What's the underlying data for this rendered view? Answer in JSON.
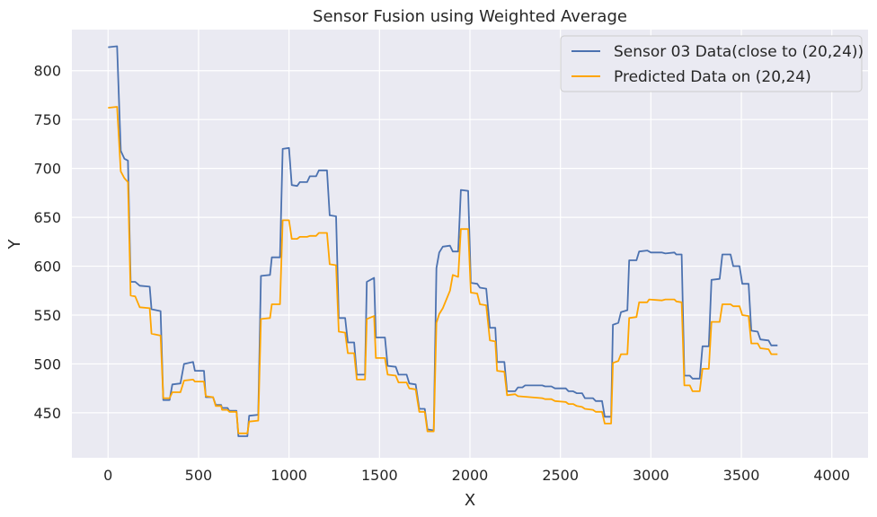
{
  "chart_data": {
    "type": "line",
    "title": "Sensor Fusion using Weighted Average",
    "xlabel": "X",
    "ylabel": "Y",
    "xlim": [
      -200,
      4200
    ],
    "ylim": [
      404,
      842
    ],
    "xticks": [
      0,
      500,
      1000,
      1500,
      2000,
      2500,
      3000,
      3500,
      4000
    ],
    "yticks": [
      450,
      500,
      550,
      600,
      650,
      700,
      750,
      800
    ],
    "grid": true,
    "legend_position": "top-right",
    "series": [
      {
        "name": "Sensor 03 Data(close to (20,24))",
        "color": "#4c72b0",
        "points": [
          [
            0,
            824
          ],
          [
            50,
            825
          ],
          [
            70,
            718
          ],
          [
            90,
            710
          ],
          [
            110,
            708
          ],
          [
            125,
            584
          ],
          [
            150,
            584
          ],
          [
            175,
            580
          ],
          [
            230,
            579
          ],
          [
            240,
            556
          ],
          [
            290,
            554
          ],
          [
            305,
            463
          ],
          [
            340,
            463
          ],
          [
            355,
            479
          ],
          [
            400,
            480
          ],
          [
            420,
            500
          ],
          [
            470,
            502
          ],
          [
            480,
            493
          ],
          [
            530,
            493
          ],
          [
            540,
            466
          ],
          [
            580,
            466
          ],
          [
            595,
            458
          ],
          [
            625,
            458
          ],
          [
            630,
            455
          ],
          [
            660,
            455
          ],
          [
            670,
            452
          ],
          [
            710,
            452
          ],
          [
            720,
            426
          ],
          [
            770,
            426
          ],
          [
            780,
            447
          ],
          [
            830,
            448
          ],
          [
            845,
            590
          ],
          [
            895,
            591
          ],
          [
            905,
            609
          ],
          [
            950,
            609
          ],
          [
            965,
            720
          ],
          [
            1000,
            721
          ],
          [
            1015,
            683
          ],
          [
            1045,
            682
          ],
          [
            1060,
            686
          ],
          [
            1100,
            686
          ],
          [
            1115,
            692
          ],
          [
            1150,
            692
          ],
          [
            1165,
            698
          ],
          [
            1210,
            698
          ],
          [
            1225,
            652
          ],
          [
            1260,
            651
          ],
          [
            1275,
            547
          ],
          [
            1310,
            547
          ],
          [
            1325,
            522
          ],
          [
            1360,
            522
          ],
          [
            1375,
            489
          ],
          [
            1420,
            489
          ],
          [
            1430,
            584
          ],
          [
            1470,
            588
          ],
          [
            1480,
            527
          ],
          [
            1530,
            527
          ],
          [
            1545,
            498
          ],
          [
            1590,
            497
          ],
          [
            1605,
            489
          ],
          [
            1650,
            489
          ],
          [
            1665,
            480
          ],
          [
            1700,
            479
          ],
          [
            1720,
            454
          ],
          [
            1750,
            454
          ],
          [
            1765,
            433
          ],
          [
            1800,
            432
          ],
          [
            1815,
            598
          ],
          [
            1830,
            614
          ],
          [
            1850,
            620
          ],
          [
            1890,
            621
          ],
          [
            1905,
            615
          ],
          [
            1935,
            615
          ],
          [
            1950,
            678
          ],
          [
            1990,
            677
          ],
          [
            2005,
            583
          ],
          [
            2040,
            582
          ],
          [
            2055,
            578
          ],
          [
            2090,
            577
          ],
          [
            2110,
            537
          ],
          [
            2140,
            537
          ],
          [
            2150,
            502
          ],
          [
            2190,
            502
          ],
          [
            2205,
            472
          ],
          [
            2250,
            472
          ],
          [
            2265,
            476
          ],
          [
            2290,
            476
          ],
          [
            2305,
            478
          ],
          [
            2400,
            478
          ],
          [
            2415,
            477
          ],
          [
            2450,
            477
          ],
          [
            2470,
            475
          ],
          [
            2530,
            475
          ],
          [
            2545,
            472
          ],
          [
            2570,
            472
          ],
          [
            2590,
            470
          ],
          [
            2620,
            470
          ],
          [
            2635,
            465
          ],
          [
            2680,
            465
          ],
          [
            2695,
            462
          ],
          [
            2730,
            462
          ],
          [
            2745,
            446
          ],
          [
            2780,
            446
          ],
          [
            2790,
            540
          ],
          [
            2820,
            542
          ],
          [
            2835,
            553
          ],
          [
            2870,
            555
          ],
          [
            2880,
            606
          ],
          [
            2920,
            606
          ],
          [
            2935,
            615
          ],
          [
            2980,
            616
          ],
          [
            3000,
            614
          ],
          [
            3060,
            614
          ],
          [
            3080,
            613
          ],
          [
            3130,
            614
          ],
          [
            3140,
            612
          ],
          [
            3170,
            612
          ],
          [
            3185,
            488
          ],
          [
            3215,
            488
          ],
          [
            3230,
            485
          ],
          [
            3270,
            485
          ],
          [
            3285,
            518
          ],
          [
            3320,
            518
          ],
          [
            3335,
            586
          ],
          [
            3380,
            587
          ],
          [
            3395,
            612
          ],
          [
            3440,
            612
          ],
          [
            3455,
            600
          ],
          [
            3490,
            600
          ],
          [
            3505,
            582
          ],
          [
            3540,
            582
          ],
          [
            3555,
            534
          ],
          [
            3590,
            533
          ],
          [
            3605,
            525
          ],
          [
            3650,
            524
          ],
          [
            3665,
            519
          ],
          [
            3700,
            519
          ]
        ]
      },
      {
        "name": "Predicted Data on (20,24)",
        "color": "#ffa500",
        "points": [
          [
            0,
            762
          ],
          [
            50,
            763
          ],
          [
            70,
            697
          ],
          [
            90,
            690
          ],
          [
            110,
            686
          ],
          [
            125,
            570
          ],
          [
            150,
            569
          ],
          [
            175,
            558
          ],
          [
            230,
            557
          ],
          [
            240,
            531
          ],
          [
            290,
            529
          ],
          [
            305,
            465
          ],
          [
            340,
            465
          ],
          [
            355,
            471
          ],
          [
            400,
            471
          ],
          [
            420,
            483
          ],
          [
            470,
            484
          ],
          [
            480,
            482
          ],
          [
            530,
            482
          ],
          [
            540,
            467
          ],
          [
            580,
            466
          ],
          [
            595,
            457
          ],
          [
            625,
            457
          ],
          [
            630,
            453
          ],
          [
            660,
            453
          ],
          [
            670,
            451
          ],
          [
            710,
            451
          ],
          [
            720,
            429
          ],
          [
            770,
            429
          ],
          [
            780,
            441
          ],
          [
            830,
            442
          ],
          [
            845,
            546
          ],
          [
            895,
            547
          ],
          [
            905,
            561
          ],
          [
            950,
            561
          ],
          [
            965,
            647
          ],
          [
            1000,
            647
          ],
          [
            1015,
            628
          ],
          [
            1045,
            628
          ],
          [
            1060,
            630
          ],
          [
            1100,
            630
          ],
          [
            1115,
            631
          ],
          [
            1150,
            631
          ],
          [
            1165,
            634
          ],
          [
            1210,
            634
          ],
          [
            1225,
            602
          ],
          [
            1260,
            601
          ],
          [
            1275,
            533
          ],
          [
            1310,
            532
          ],
          [
            1325,
            511
          ],
          [
            1360,
            511
          ],
          [
            1375,
            484
          ],
          [
            1420,
            484
          ],
          [
            1430,
            546
          ],
          [
            1470,
            549
          ],
          [
            1480,
            506
          ],
          [
            1530,
            506
          ],
          [
            1545,
            489
          ],
          [
            1590,
            488
          ],
          [
            1605,
            481
          ],
          [
            1650,
            481
          ],
          [
            1665,
            475
          ],
          [
            1700,
            474
          ],
          [
            1720,
            451
          ],
          [
            1750,
            451
          ],
          [
            1765,
            431
          ],
          [
            1800,
            431
          ],
          [
            1815,
            542
          ],
          [
            1830,
            551
          ],
          [
            1850,
            557
          ],
          [
            1890,
            575
          ],
          [
            1905,
            591
          ],
          [
            1935,
            589
          ],
          [
            1950,
            638
          ],
          [
            1990,
            638
          ],
          [
            2005,
            573
          ],
          [
            2040,
            572
          ],
          [
            2055,
            561
          ],
          [
            2090,
            560
          ],
          [
            2110,
            524
          ],
          [
            2140,
            523
          ],
          [
            2150,
            493
          ],
          [
            2190,
            492
          ],
          [
            2205,
            468
          ],
          [
            2250,
            469
          ],
          [
            2265,
            467
          ],
          [
            2400,
            465
          ],
          [
            2415,
            464
          ],
          [
            2450,
            464
          ],
          [
            2470,
            462
          ],
          [
            2530,
            461
          ],
          [
            2545,
            459
          ],
          [
            2570,
            459
          ],
          [
            2590,
            457
          ],
          [
            2620,
            456
          ],
          [
            2635,
            454
          ],
          [
            2680,
            453
          ],
          [
            2695,
            451
          ],
          [
            2730,
            451
          ],
          [
            2745,
            439
          ],
          [
            2780,
            439
          ],
          [
            2790,
            501
          ],
          [
            2820,
            503
          ],
          [
            2835,
            510
          ],
          [
            2870,
            510
          ],
          [
            2880,
            547
          ],
          [
            2920,
            548
          ],
          [
            2935,
            563
          ],
          [
            2980,
            563
          ],
          [
            2990,
            566
          ],
          [
            3060,
            565
          ],
          [
            3080,
            566
          ],
          [
            3130,
            566
          ],
          [
            3140,
            564
          ],
          [
            3170,
            563
          ],
          [
            3185,
            478
          ],
          [
            3215,
            478
          ],
          [
            3230,
            472
          ],
          [
            3270,
            472
          ],
          [
            3285,
            495
          ],
          [
            3320,
            495
          ],
          [
            3335,
            543
          ],
          [
            3380,
            543
          ],
          [
            3395,
            561
          ],
          [
            3440,
            561
          ],
          [
            3455,
            559
          ],
          [
            3490,
            559
          ],
          [
            3505,
            550
          ],
          [
            3540,
            549
          ],
          [
            3555,
            521
          ],
          [
            3590,
            521
          ],
          [
            3605,
            516
          ],
          [
            3650,
            515
          ],
          [
            3665,
            510
          ],
          [
            3700,
            510
          ]
        ]
      }
    ]
  }
}
